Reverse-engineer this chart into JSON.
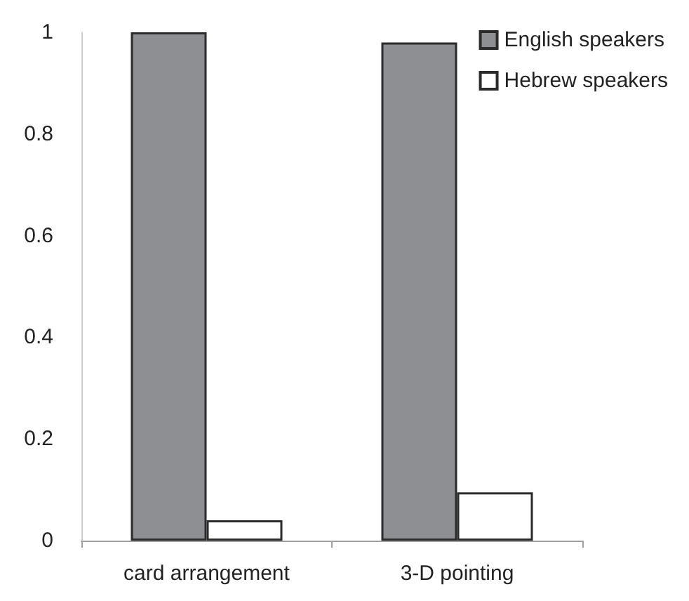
{
  "chart_data": {
    "type": "bar",
    "categories": [
      "card arrangement",
      "3-D pointing"
    ],
    "series": [
      {
        "name": "English speakers",
        "color": "#8e8f93",
        "values": [
          1.0,
          0.98
        ]
      },
      {
        "name": "Hebrew speakers",
        "color": "#ffffff",
        "values": [
          0.04,
          0.095
        ]
      }
    ],
    "ylim": [
      0,
      1
    ],
    "yticks": [
      0,
      0.2,
      0.4,
      0.6,
      0.8,
      1
    ],
    "grid": false,
    "legend": "top right"
  }
}
